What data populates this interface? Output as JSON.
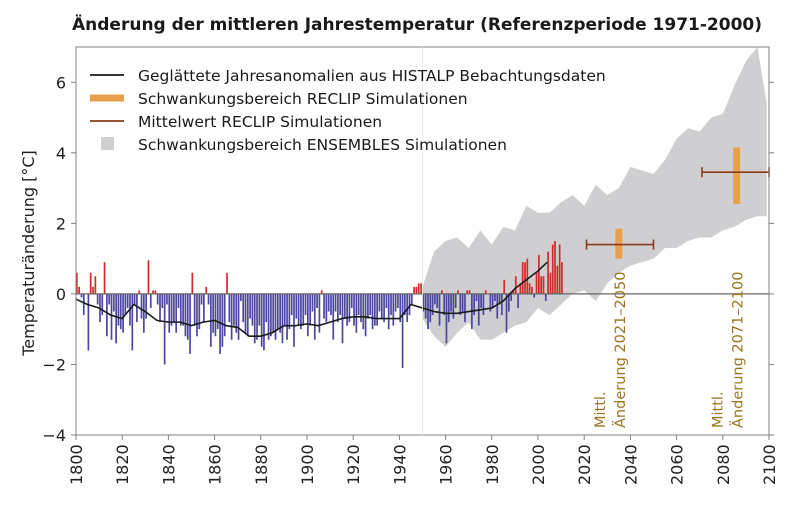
{
  "chart_data": {
    "type": "bar",
    "title": "Änderung der mittleren Jahrestemperatur (Referenzperiode 1971-2000)",
    "xlabel": "",
    "ylabel": "Temperaturänderung [°C]",
    "xlim": [
      1800,
      2100
    ],
    "ylim": [
      -4,
      7
    ],
    "x_ticks": [
      1800,
      1820,
      1840,
      1860,
      1880,
      1900,
      1920,
      1940,
      1960,
      1980,
      2000,
      2020,
      2040,
      2060,
      2080,
      2100
    ],
    "x_tick_labels": [
      "1800",
      "1820",
      "1840",
      "1860",
      "1880",
      "1900",
      "1920",
      "1940",
      "1960",
      "1980",
      "2000",
      "2020",
      "2040",
      "2060",
      "2080",
      "2100"
    ],
    "y_ticks": [
      -4,
      -2,
      0,
      2,
      4,
      6
    ],
    "y_tick_labels": [
      "−4",
      "−2",
      "0",
      "2",
      "4",
      "6"
    ],
    "grid": false,
    "legend_position": "top-left",
    "legend": [
      {
        "label": "Geglättete Jahresanomalien aus HISTALP Bebachtungsdaten",
        "symbol": "line",
        "color": "#1a1a1a"
      },
      {
        "label": "Schwankungsbereich RECLIP Simulationen",
        "symbol": "thick-bar",
        "color": "#e8a04a"
      },
      {
        "label": "Mittelwert RECLIP Simulationen",
        "symbol": "line",
        "color": "#8b3a1e"
      },
      {
        "label": "Schwankungsbereich ENSEMBLES Simulationen",
        "symbol": "square",
        "color": "#cfcfd1"
      }
    ],
    "colors": {
      "positive_bar": "#d42a2a",
      "negative_bar": "#4e47a0",
      "smoothed_line": "#1a1a1a",
      "reclip_range": "#e8a04a",
      "reclip_mean": "#8b3a1e",
      "ensembles_range": "#cfcfd1",
      "annotation_text": "#9a7420",
      "axis": "#808080"
    },
    "annual_anomalies": {
      "start_year": 1800,
      "values": [
        0.6,
        0.2,
        -0.1,
        -0.6,
        0.0,
        -1.6,
        0.6,
        0.2,
        0.5,
        -0.3,
        -0.8,
        -0.6,
        0.9,
        -1.2,
        -0.3,
        -1.3,
        -0.5,
        -1.4,
        -0.9,
        -1.0,
        -1.1,
        -0.6,
        -0.4,
        -0.9,
        -1.6,
        -0.3,
        -0.8,
        0.1,
        -0.7,
        -1.1,
        -0.7,
        0.95,
        -0.4,
        0.1,
        0.1,
        -0.3,
        -0.8,
        -0.4,
        -2.0,
        -0.3,
        -1.1,
        -0.9,
        -0.8,
        -1.1,
        -0.4,
        -0.9,
        -0.9,
        -1.2,
        -1.3,
        -1.7,
        0.6,
        -0.9,
        -1.2,
        -1.0,
        -0.3,
        -0.8,
        0.2,
        -0.3,
        -1.5,
        -1.1,
        -1.2,
        -1.0,
        -1.7,
        -1.5,
        -1.2,
        0.6,
        -0.8,
        -1.3,
        -0.9,
        -1.1,
        -1.3,
        -0.2,
        -0.8,
        -1.1,
        -1.2,
        -0.7,
        -0.9,
        -1.4,
        -1.3,
        -0.9,
        -1.5,
        -1.6,
        -0.8,
        -1.3,
        -1.2,
        -1.1,
        -1.3,
        -1.0,
        -1.1,
        -1.4,
        -0.9,
        -1.3,
        -1.0,
        -0.6,
        -1.5,
        -0.7,
        -0.9,
        -1.0,
        -0.9,
        -0.6,
        -1.2,
        -0.9,
        -0.5,
        -1.3,
        -0.4,
        -1.1,
        0.1,
        -0.7,
        -0.8,
        -0.5,
        -0.6,
        -1.3,
        -0.5,
        -0.8,
        -0.6,
        -1.4,
        -0.7,
        -0.9,
        -0.8,
        -0.4,
        -0.9,
        -1.1,
        -0.6,
        -0.8,
        -1.0,
        -1.2,
        -0.7,
        -0.6,
        -1.0,
        -0.9,
        -0.9,
        -0.5,
        -0.7,
        -0.8,
        -0.4,
        -1.0,
        -0.6,
        -0.9,
        -0.5,
        -0.4,
        -0.8,
        -2.1,
        -0.6,
        -0.8,
        -0.6,
        -0.3,
        0.2,
        0.2,
        0.3,
        0.3,
        -0.5,
        -0.7,
        -1.0,
        -0.8,
        -0.6,
        -0.3,
        -0.4,
        -0.9,
        0.1,
        -0.6,
        -1.4,
        -0.8,
        -0.5,
        -0.7,
        -0.4,
        0.1,
        -0.6,
        -0.5,
        -0.8,
        0.1,
        0.1,
        -1.0,
        -0.6,
        -0.2,
        -0.9,
        -0.4,
        -0.6,
        0.1,
        0.0,
        -0.5,
        -0.4,
        -0.2,
        -0.7,
        -0.3,
        -0.6,
        0.4,
        -1.1,
        -0.5,
        -0.2,
        0.1,
        0.5,
        -0.4,
        0.3,
        0.9,
        0.9,
        1.0,
        0.3,
        0.2,
        -0.1,
        0.6,
        1.1,
        0.5,
        0.5,
        -0.2,
        1.2,
        0.6,
        1.4,
        1.5,
        0.8,
        1.4,
        0.9
      ],
      "note": "one value per year, 1800-2004"
    },
    "smoothed_series": {
      "x": [
        1800,
        1805,
        1810,
        1815,
        1820,
        1825,
        1830,
        1835,
        1840,
        1845,
        1850,
        1855,
        1860,
        1865,
        1870,
        1875,
        1880,
        1885,
        1890,
        1895,
        1900,
        1905,
        1910,
        1915,
        1920,
        1925,
        1930,
        1935,
        1940,
        1945,
        1950,
        1955,
        1960,
        1965,
        1970,
        1975,
        1980,
        1985,
        1990,
        1995,
        2000,
        2004
      ],
      "y": [
        -0.15,
        -0.3,
        -0.4,
        -0.6,
        -0.7,
        -0.3,
        -0.5,
        -0.75,
        -0.8,
        -0.8,
        -0.9,
        -0.8,
        -0.75,
        -0.9,
        -0.95,
        -1.2,
        -1.2,
        -1.1,
        -0.9,
        -0.9,
        -0.85,
        -0.9,
        -0.8,
        -0.7,
        -0.65,
        -0.65,
        -0.7,
        -0.7,
        -0.7,
        -0.3,
        -0.4,
        -0.5,
        -0.55,
        -0.55,
        -0.5,
        -0.45,
        -0.4,
        -0.2,
        0.15,
        0.4,
        0.65,
        0.9
      ]
    },
    "ensembles_range": {
      "x": [
        1950,
        1955,
        1960,
        1965,
        1970,
        1975,
        1980,
        1985,
        1990,
        1995,
        2000,
        2005,
        2010,
        2015,
        2020,
        2025,
        2030,
        2035,
        2040,
        2045,
        2050,
        2055,
        2060,
        2065,
        2070,
        2075,
        2080,
        2085,
        2090,
        2095,
        2099
      ],
      "upper": [
        0.2,
        1.2,
        1.5,
        1.6,
        1.3,
        1.8,
        1.4,
        1.9,
        1.8,
        2.5,
        2.3,
        2.3,
        2.6,
        2.8,
        2.5,
        3.1,
        2.8,
        3.0,
        3.6,
        3.5,
        3.4,
        3.8,
        4.4,
        4.7,
        4.6,
        5.0,
        5.1,
        5.9,
        6.6,
        7.1,
        5.4
      ],
      "lower": [
        -0.7,
        -1.2,
        -1.5,
        -1.1,
        -0.8,
        -1.3,
        -1.3,
        -1.1,
        -0.9,
        -0.8,
        -0.4,
        -0.6,
        -0.3,
        0.0,
        0.1,
        -0.2,
        0.3,
        0.6,
        0.8,
        0.9,
        1.0,
        1.3,
        1.3,
        1.5,
        1.6,
        1.6,
        1.8,
        1.9,
        2.1,
        2.2,
        2.2
      ]
    },
    "reclip_periods": [
      {
        "label_line1": "Mittl.",
        "label_line2": "Änderung 2021–2050",
        "start_year": 2021,
        "end_year": 2050,
        "center_year": 2035,
        "mean": 1.4,
        "range_min": 1.0,
        "range_max": 1.85
      },
      {
        "label_line1": "Mittl.",
        "label_line2": "Änderung 2071–2100",
        "start_year": 2071,
        "end_year": 2100,
        "center_year": 2086,
        "mean": 3.45,
        "range_min": 2.55,
        "range_max": 4.15
      }
    ]
  }
}
